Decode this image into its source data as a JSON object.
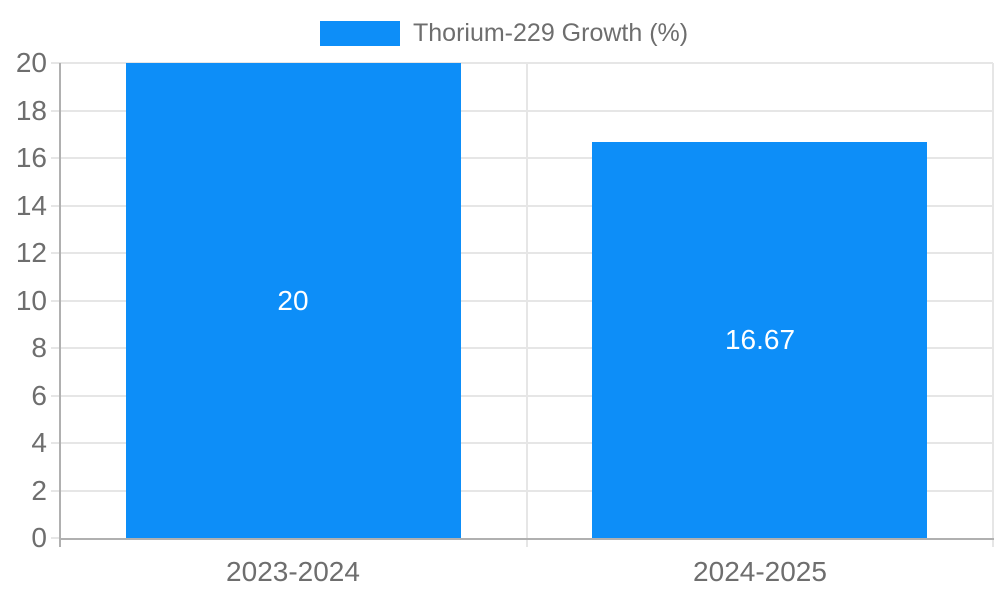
{
  "chart_data": {
    "type": "bar",
    "title": "",
    "categories": [
      "2023-2024",
      "2024-2025"
    ],
    "series": [
      {
        "name": "Thorium-229 Growth (%)",
        "values": [
          20,
          16.67
        ],
        "data_labels": [
          "20",
          "16.67"
        ]
      }
    ],
    "xlabel": "",
    "ylabel": "",
    "ylim": [
      0,
      20
    ],
    "yticks": [
      0,
      2,
      4,
      6,
      8,
      10,
      12,
      14,
      16,
      18,
      20
    ],
    "grid": "horizontal gridlines plus category boundary verticals",
    "legend_position": "top-center",
    "colors": {
      "bar": "#0d8ef8",
      "gridline": "#e6e6e6",
      "axis_line": "#b0b0b0",
      "axis_label": "#6e6e6e",
      "legend_text": "#6e6e6e",
      "data_label": "#ffffff",
      "background": "#ffffff"
    }
  }
}
